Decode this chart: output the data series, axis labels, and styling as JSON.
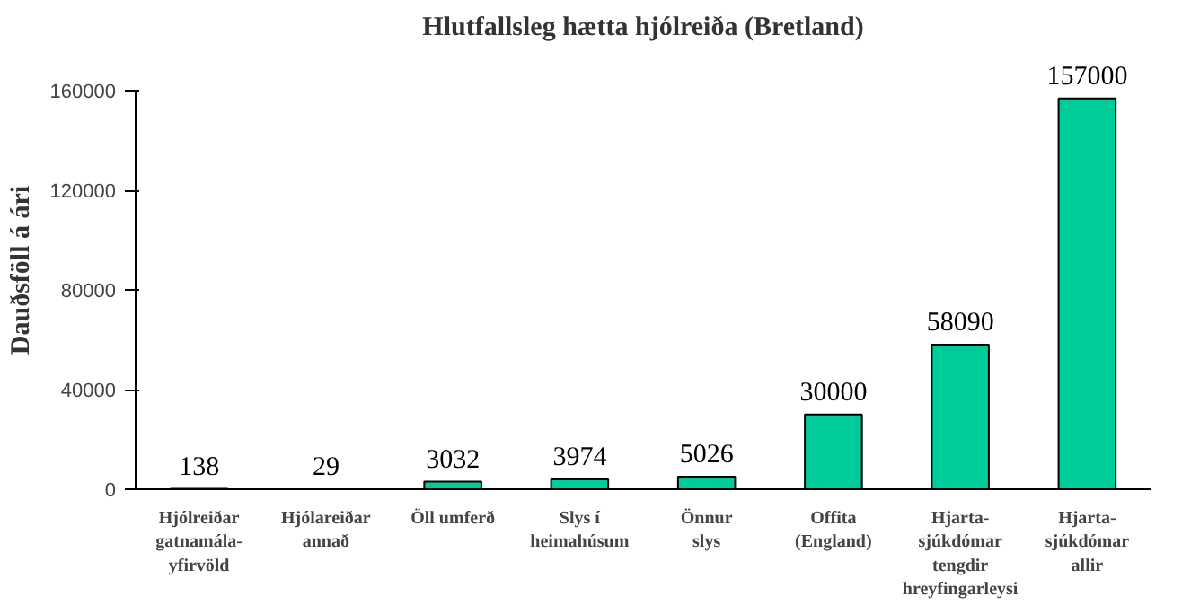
{
  "chart_data": {
    "type": "bar",
    "title": "Hlutfallsleg hætta hjólreiða (Bretland)",
    "ylabel": "Dauðsföll á ári",
    "categories": [
      "Hjólreiðar\ngatnamála-\nyfirvöld",
      "Hjólareiðar\nannað",
      "Öll umferð",
      "Slys í\nheimahúsum",
      "Önnur\nslys",
      "Offita\n(England)",
      "Hjarta-\nsjúkdómar\ntengdir\nhreyfingarleysi",
      "Hjarta-\nsjúkdómar\nallir"
    ],
    "values": [
      138,
      29,
      3032,
      3974,
      5026,
      30000,
      58090,
      157000
    ],
    "color": "#00cc99",
    "ylim": [
      0,
      160000
    ],
    "yticks": [
      0,
      40000,
      80000,
      120000,
      160000
    ],
    "data_labels": true
  }
}
